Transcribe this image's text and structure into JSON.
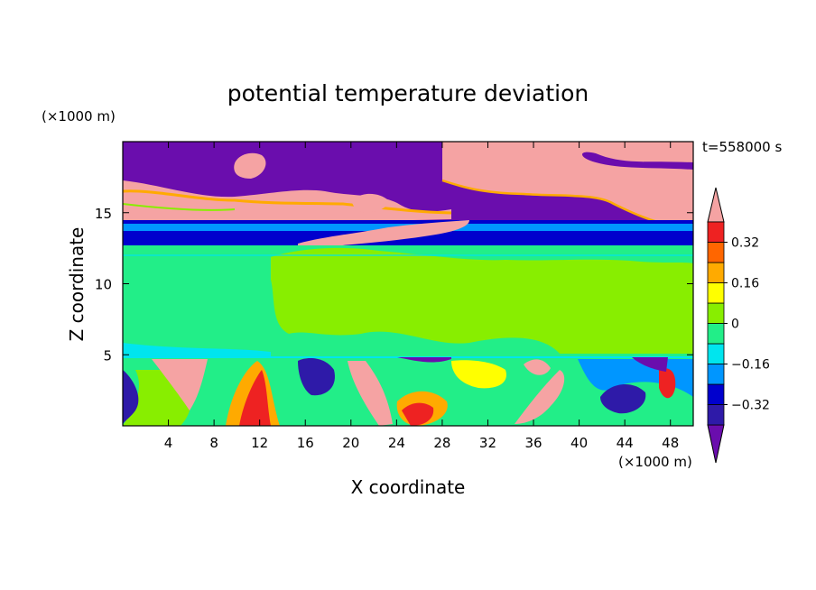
{
  "chart_data": {
    "type": "heatmap",
    "title": "potential temperature deviation",
    "xlabel": "X coordinate",
    "ylabel": "Z coordinate",
    "x_unit": "(×1000 m)",
    "y_unit": "(×1000 m)",
    "time_label": "t=558000 s",
    "xlim": [
      0,
      50
    ],
    "ylim": [
      0,
      20
    ],
    "x_ticks": [
      "4",
      "8",
      "12",
      "16",
      "20",
      "24",
      "28",
      "32",
      "36",
      "40",
      "44",
      "48"
    ],
    "y_ticks": [
      "5",
      "10",
      "15"
    ],
    "colorbar": {
      "levels": [
        -0.4,
        -0.32,
        -0.24,
        -0.16,
        -0.08,
        0,
        0.08,
        0.16,
        0.24,
        0.32,
        0.4
      ],
      "tick_labels": [
        "0.32",
        "0.16",
        "0",
        "−0.16",
        "−0.32"
      ],
      "colors": [
        "#6a0dad",
        "#2e1aa8",
        "#0000cd",
        "#0096ff",
        "#00e5ee",
        "#22ee88",
        "#88ee00",
        "#ffff00",
        "#ffaa00",
        "#ff6600",
        "#ee2222",
        "#f5a3a3"
      ],
      "extend": "both"
    },
    "layers": [
      {
        "z_range": [
          0,
          5
        ],
        "description_values": "mixed -0.4 to 0.4"
      },
      {
        "z_range": [
          5,
          12.5
        ],
        "typical_value": 0.02
      },
      {
        "z_range": [
          12.5,
          14
        ],
        "typical_value": -0.3
      },
      {
        "z_range": [
          14,
          20
        ],
        "typical_value": -0.4
      }
    ]
  }
}
